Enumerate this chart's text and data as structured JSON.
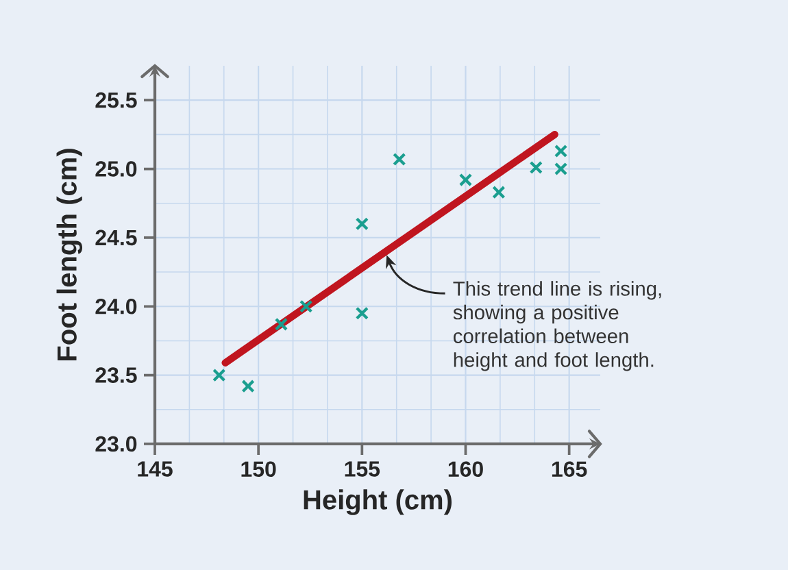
{
  "chart_data": {
    "type": "scatter",
    "xlabel": "Height (cm)",
    "ylabel": "Foot length (cm)",
    "series": [
      {
        "color": "#1a9e8f",
        "marker": "cross",
        "x": [
          148.1,
          149.5,
          151.1,
          152.3,
          155.0,
          155.0,
          156.8,
          160.0,
          161.6,
          163.4,
          164.6,
          164.6
        ],
        "values": [
          23.5,
          23.42,
          23.87,
          24.0,
          23.95,
          24.6,
          25.07,
          24.92,
          24.83,
          25.01,
          25.13,
          25.0
        ]
      },
      {
        "type": "line",
        "color": "#c0151f",
        "x": [
          148.4,
          164.3
        ],
        "values": [
          23.59,
          25.25
        ]
      }
    ],
    "xlim": [
      145,
      166.5
    ],
    "ylim": [
      23,
      25.75
    ],
    "xticks": [
      145,
      150,
      155,
      160,
      165
    ],
    "yticks": [
      {
        "value": 23,
        "label": "23.0"
      },
      {
        "value": 23.5,
        "label": "23.5"
      },
      {
        "value": 24,
        "label": "24.0"
      },
      {
        "value": 24.5,
        "label": "24.5"
      },
      {
        "value": 25,
        "label": "25.0"
      },
      {
        "value": 25.5,
        "label": "25.5"
      }
    ],
    "grid": true,
    "annotations": [
      {
        "text": "This trend line is rising, showing a positive correlation between height and foot length.",
        "x": 156.1,
        "y": 24.4
      }
    ]
  }
}
